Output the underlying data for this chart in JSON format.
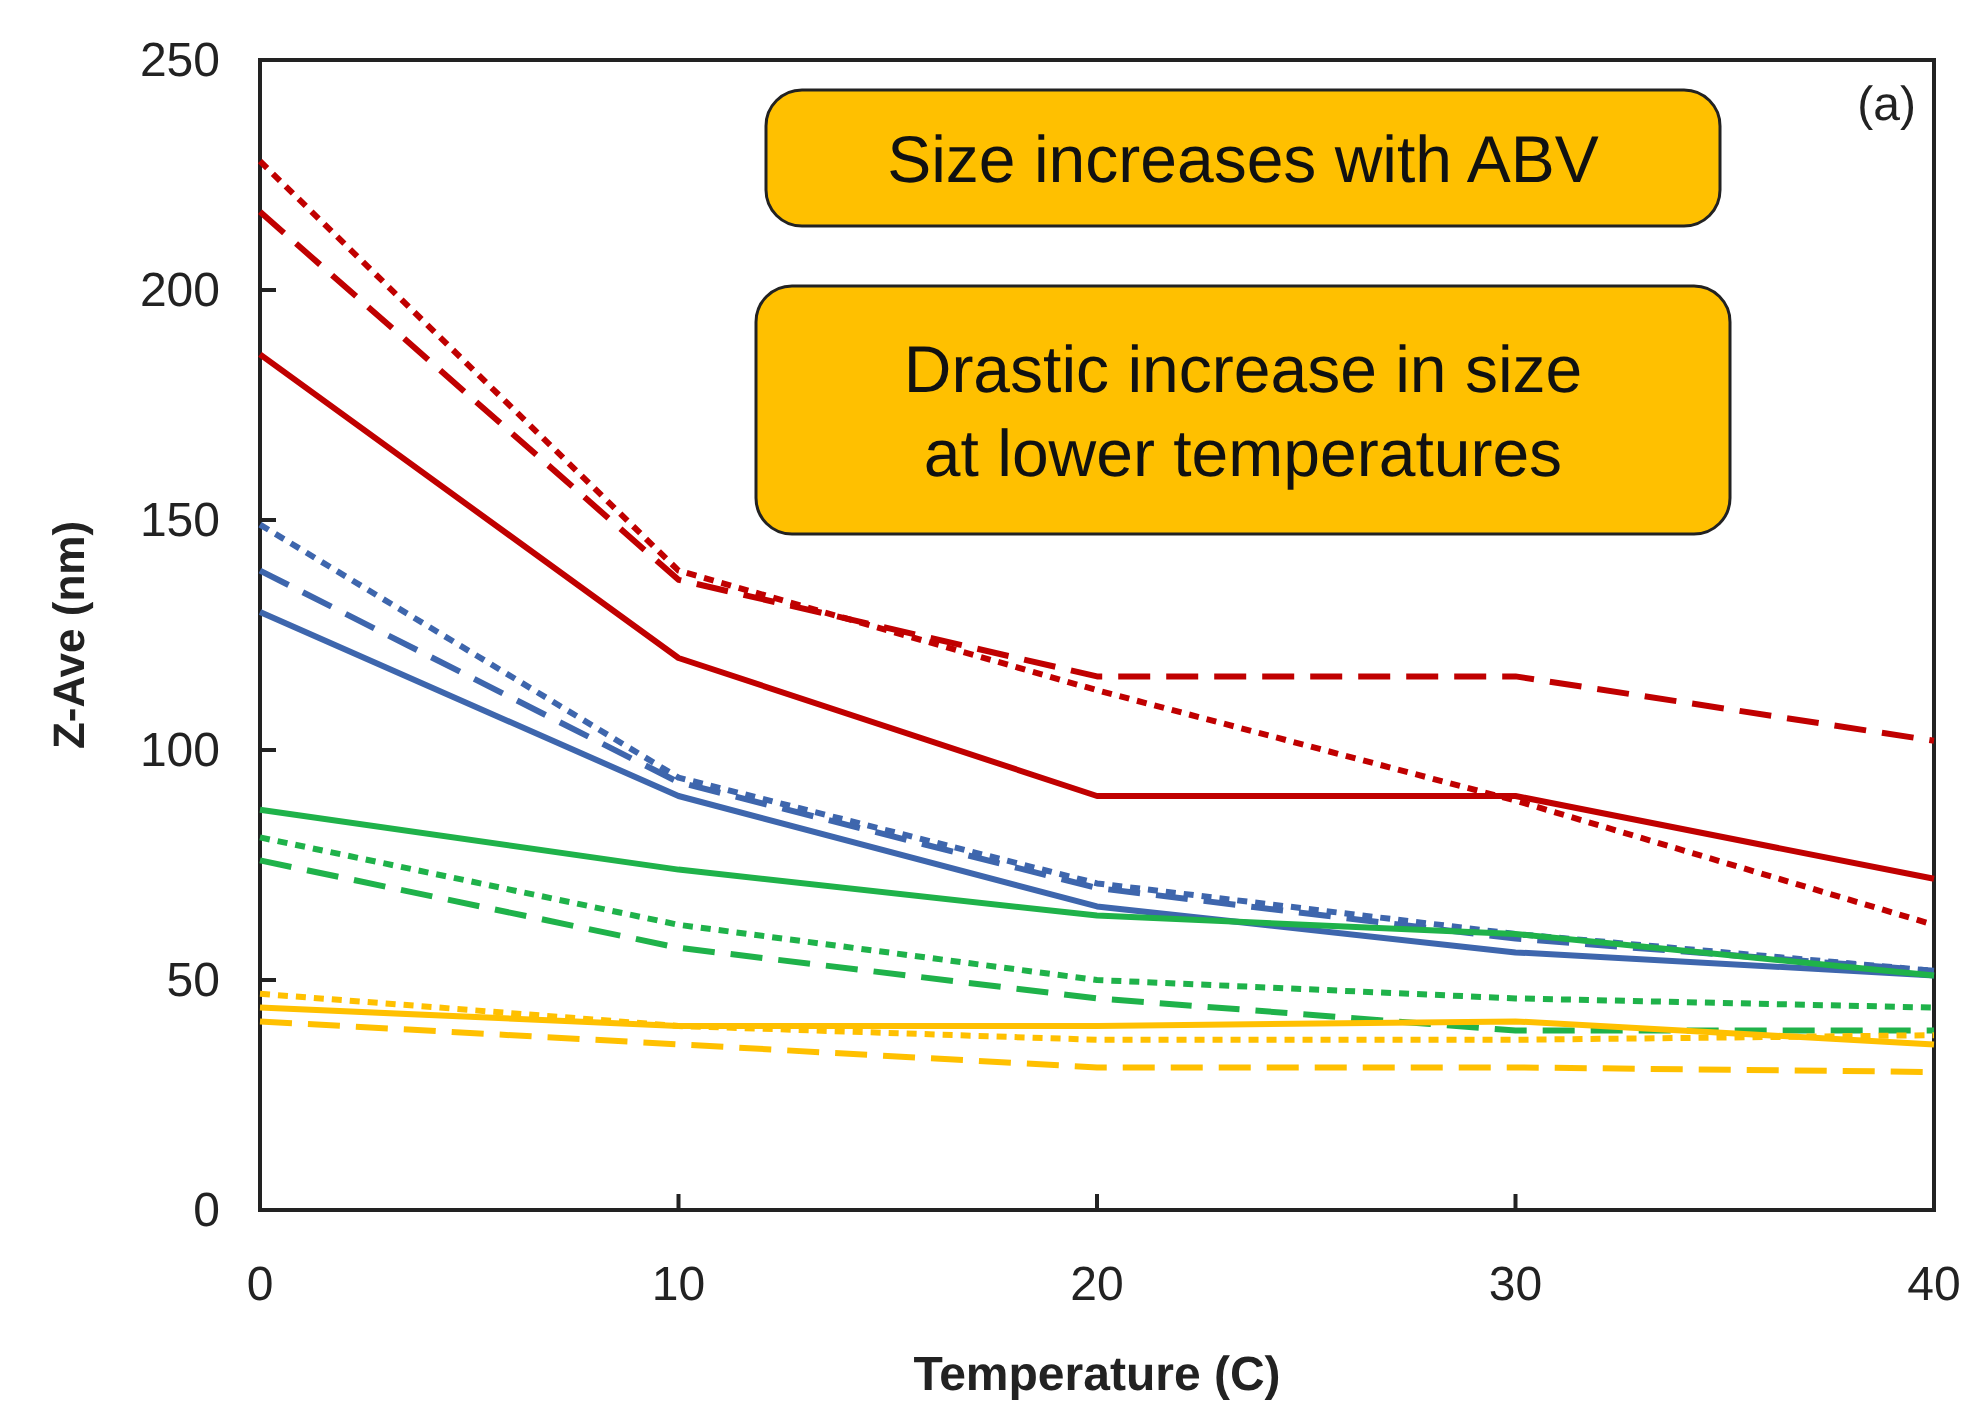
{
  "chart_data": {
    "type": "line",
    "xlabel": "Temperature (C)",
    "ylabel": "Z-Ave (nm)",
    "x": [
      0,
      10,
      20,
      30,
      40
    ],
    "xlim": [
      0,
      40
    ],
    "xticks": [
      0,
      10,
      20,
      30,
      40
    ],
    "ylim": [
      0,
      250
    ],
    "yticks": [
      0,
      50,
      100,
      150,
      200,
      250
    ],
    "grid": false,
    "annotations": [
      "(a)",
      "Size increases with ABV",
      "Drastic increase in size\nat lower temperatures"
    ],
    "series": [
      {
        "color": "#c00000",
        "line_style": "solid",
        "values": [
          186,
          120,
          90,
          90,
          72
        ]
      },
      {
        "color": "#c00000",
        "line_style": "dashed",
        "values": [
          217,
          137,
          116,
          116,
          102
        ]
      },
      {
        "color": "#c00000",
        "line_style": "dotted",
        "values": [
          228,
          139,
          113,
          89,
          62
        ]
      },
      {
        "color": "#3e66ad",
        "line_style": "solid",
        "values": [
          130,
          90,
          66,
          56,
          51
        ]
      },
      {
        "color": "#3e66ad",
        "line_style": "dashed",
        "values": [
          139,
          93,
          70,
          59,
          52
        ]
      },
      {
        "color": "#3e66ad",
        "line_style": "dotted",
        "values": [
          149,
          94,
          71,
          60,
          52
        ]
      },
      {
        "color": "#1fb24a",
        "line_style": "solid",
        "values": [
          87,
          74,
          64,
          60,
          51
        ]
      },
      {
        "color": "#1fb24a",
        "line_style": "dotted",
        "values": [
          81,
          62,
          50,
          46,
          44
        ]
      },
      {
        "color": "#1fb24a",
        "line_style": "dashed",
        "values": [
          76,
          57,
          46,
          39,
          39
        ]
      },
      {
        "color": "#ffc000",
        "line_style": "solid",
        "values": [
          44,
          40,
          40,
          41,
          36
        ]
      },
      {
        "color": "#ffc000",
        "line_style": "dotted",
        "values": [
          47,
          40,
          37,
          37,
          38
        ]
      },
      {
        "color": "#ffc000",
        "line_style": "dashed",
        "values": [
          41,
          36,
          31,
          31,
          30
        ]
      }
    ]
  }
}
